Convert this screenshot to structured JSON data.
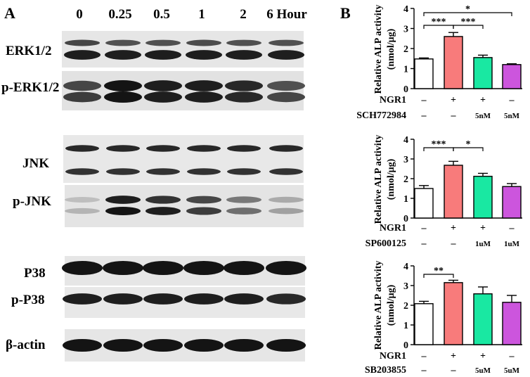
{
  "panel_a": {
    "label": "A",
    "time_labels": [
      "0",
      "0.25",
      "0.5",
      "1",
      "2",
      "6 Hour"
    ],
    "blots": [
      {
        "name": "ERK1/2",
        "label": "ERK1/2"
      },
      {
        "name": "p-ERK1/2",
        "label": "p-ERK1/2"
      },
      {
        "name": "JNK",
        "label": "JNK"
      },
      {
        "name": "p-JNK",
        "label": "p-JNK"
      },
      {
        "name": "P38",
        "label": "P38"
      },
      {
        "name": "p-P38",
        "label": "p-P38"
      },
      {
        "name": "beta-actin",
        "label": "β-actin"
      }
    ],
    "band_intensity": {
      "ERK1/2_upper": [
        0.75,
        0.7,
        0.7,
        0.72,
        0.7,
        0.7
      ],
      "ERK1/2_lower": [
        0.95,
        0.95,
        0.95,
        0.95,
        0.95,
        0.95
      ],
      "p-ERK1/2_upper": [
        0.75,
        1.0,
        0.95,
        0.95,
        0.9,
        0.7
      ],
      "p-ERK1/2_lower": [
        0.8,
        1.0,
        0.95,
        0.95,
        0.9,
        0.75
      ],
      "JNK_upper": [
        0.9,
        0.9,
        0.9,
        0.9,
        0.9,
        0.9
      ],
      "JNK_lower": [
        0.85,
        0.85,
        0.85,
        0.85,
        0.85,
        0.85
      ],
      "p-JNK_upper": [
        0.15,
        0.95,
        0.85,
        0.75,
        0.5,
        0.25
      ],
      "p-JNK_lower": [
        0.2,
        1.0,
        0.95,
        0.8,
        0.55,
        0.3
      ],
      "P38": [
        1.0,
        1.0,
        1.0,
        1.0,
        1.0,
        1.0
      ],
      "p-P38": [
        0.95,
        0.95,
        0.95,
        0.95,
        0.95,
        0.9
      ],
      "beta-actin": [
        1.0,
        1.0,
        1.0,
        1.0,
        1.0,
        1.0
      ]
    }
  },
  "panel_b": {
    "label": "B",
    "colors": [
      "#ffffff",
      "#f87b7b",
      "#19e8a2",
      "#cc55dd"
    ],
    "ngr1_label": "NGR1",
    "ngr1_row": [
      "–",
      "+",
      "+",
      "–"
    ]
  },
  "chart_data": [
    {
      "type": "bar",
      "ylabel": [
        "Relative ALP activity",
        "(nmol/μg)"
      ],
      "ylim": [
        0,
        4
      ],
      "yticks": [
        "0",
        "1",
        "2",
        "3",
        "4"
      ],
      "values": [
        1.48,
        2.6,
        1.55,
        1.2
      ],
      "errors": [
        0.05,
        0.2,
        0.12,
        0.04
      ],
      "inhibitor_label": "SCH772984",
      "inhibitor_row": [
        "–",
        "–",
        "5nM",
        "5nM"
      ],
      "significance": [
        {
          "from": 0,
          "to": 3,
          "label": "*"
        },
        {
          "from": 0,
          "to": 1,
          "label": "***"
        },
        {
          "from": 1,
          "to": 2,
          "label": "***"
        }
      ]
    },
    {
      "type": "bar",
      "ylabel": [
        "Relative ALP activity",
        "(nmol/μg)"
      ],
      "ylim": [
        0,
        4
      ],
      "yticks": [
        "0",
        "1",
        "2",
        "3",
        "4"
      ],
      "values": [
        1.5,
        2.68,
        2.12,
        1.6
      ],
      "errors": [
        0.15,
        0.2,
        0.15,
        0.15
      ],
      "inhibitor_label": "SP600125",
      "inhibitor_row": [
        "–",
        "–",
        "1uM",
        "1uM"
      ],
      "significance": [
        {
          "from": 0,
          "to": 1,
          "label": "***"
        },
        {
          "from": 1,
          "to": 2,
          "label": "*"
        }
      ]
    },
    {
      "type": "bar",
      "ylabel": [
        "Relative ALP activity",
        "(nmol/μg)"
      ],
      "ylim": [
        0,
        4
      ],
      "yticks": [
        "0",
        "1",
        "2",
        "3",
        "4"
      ],
      "values": [
        2.08,
        3.15,
        2.58,
        2.15
      ],
      "errors": [
        0.12,
        0.12,
        0.35,
        0.35
      ],
      "inhibitor_label": "SB203855",
      "inhibitor_row": [
        "–",
        "–",
        "5uM",
        "5uM"
      ],
      "significance": [
        {
          "from": 0,
          "to": 1,
          "label": "**"
        }
      ]
    }
  ]
}
